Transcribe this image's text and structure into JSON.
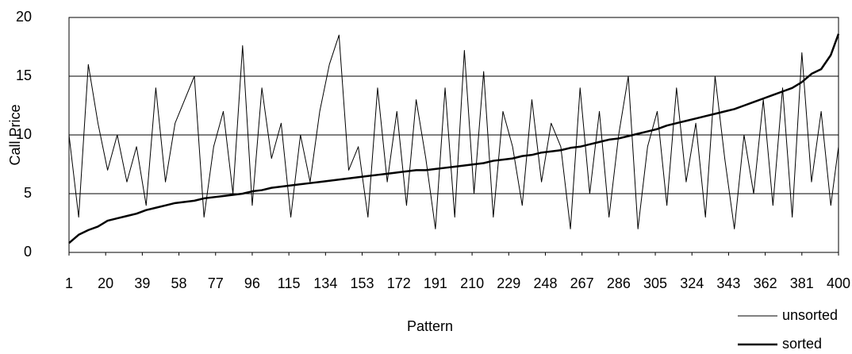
{
  "chart_data": {
    "type": "line",
    "x_label": "Pattern",
    "y_label": "Call Price",
    "x": [
      1,
      6,
      11,
      16,
      21,
      26,
      31,
      36,
      41,
      46,
      51,
      56,
      61,
      66,
      71,
      76,
      81,
      86,
      91,
      96,
      101,
      106,
      111,
      116,
      121,
      126,
      131,
      136,
      141,
      146,
      151,
      156,
      161,
      166,
      171,
      176,
      181,
      186,
      191,
      196,
      201,
      206,
      211,
      216,
      221,
      226,
      231,
      236,
      241,
      246,
      251,
      256,
      261,
      266,
      271,
      276,
      281,
      286,
      291,
      296,
      301,
      306,
      311,
      316,
      321,
      326,
      331,
      336,
      341,
      346,
      351,
      356,
      361,
      366,
      371,
      376,
      381,
      386,
      391,
      396,
      400
    ],
    "series": [
      {
        "name": "unsorted",
        "color": "#000000",
        "width": 1,
        "values": [
          10,
          3,
          16,
          11,
          7,
          10,
          6,
          9,
          4,
          14,
          6,
          11,
          13,
          15,
          3,
          9,
          12,
          5,
          17.6,
          4,
          14,
          8,
          11,
          3,
          10,
          6,
          12,
          16,
          18.5,
          7,
          9,
          3,
          14,
          6,
          12,
          4,
          13,
          8,
          2,
          14,
          3,
          17.2,
          5,
          15.4,
          3,
          12,
          9,
          4,
          13,
          6,
          11,
          9,
          2,
          14,
          5,
          12,
          3,
          10,
          15,
          2,
          9,
          12,
          4,
          14,
          6,
          11,
          3,
          15,
          8,
          2,
          10,
          5,
          13,
          4,
          14,
          3,
          17,
          6,
          12,
          4,
          9
        ]
      },
      {
        "name": "sorted",
        "color": "#000000",
        "width": 2.5,
        "values": [
          0.8,
          1.5,
          1.9,
          2.2,
          2.7,
          2.9,
          3.1,
          3.3,
          3.6,
          3.8,
          4.0,
          4.2,
          4.3,
          4.4,
          4.6,
          4.7,
          4.8,
          4.9,
          5.0,
          5.2,
          5.3,
          5.5,
          5.6,
          5.7,
          5.8,
          5.9,
          6.0,
          6.1,
          6.2,
          6.3,
          6.4,
          6.5,
          6.6,
          6.7,
          6.8,
          6.9,
          7.0,
          7.0,
          7.1,
          7.2,
          7.3,
          7.4,
          7.5,
          7.6,
          7.8,
          7.9,
          8.0,
          8.2,
          8.3,
          8.5,
          8.6,
          8.7,
          8.9,
          9.0,
          9.2,
          9.4,
          9.6,
          9.7,
          9.9,
          10.1,
          10.3,
          10.5,
          10.8,
          11.0,
          11.2,
          11.4,
          11.6,
          11.8,
          12.0,
          12.2,
          12.5,
          12.8,
          13.1,
          13.4,
          13.7,
          14.0,
          14.5,
          15.2,
          15.6,
          16.8,
          18.6
        ]
      }
    ],
    "xlim": [
      1,
      400
    ],
    "xticks": [
      1,
      20,
      39,
      58,
      77,
      96,
      115,
      134,
      153,
      172,
      191,
      210,
      229,
      248,
      267,
      286,
      305,
      324,
      343,
      362,
      381,
      400
    ],
    "ylim": [
      0,
      20
    ],
    "yticks": [
      0,
      5,
      10,
      15,
      20
    ],
    "grid": true,
    "legend": "bottom-right"
  }
}
